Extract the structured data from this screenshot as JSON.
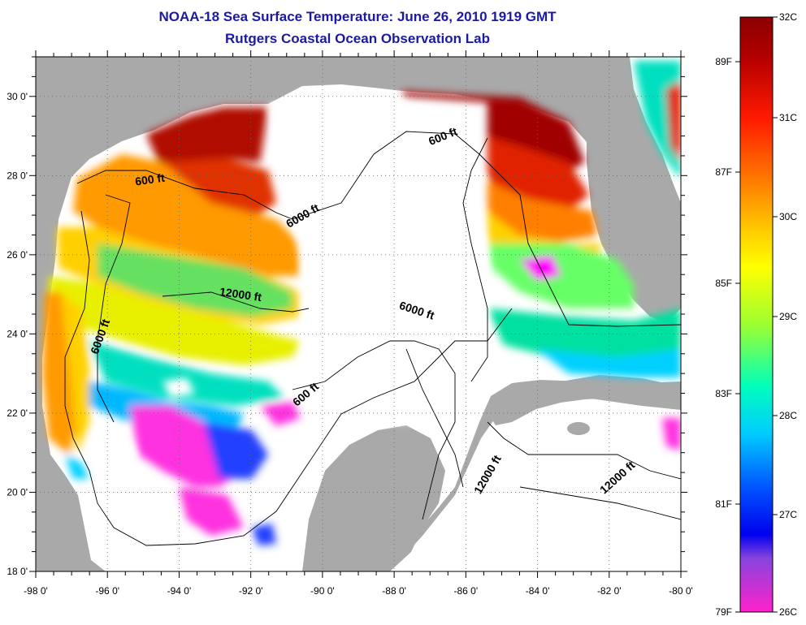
{
  "header": {
    "title": "NOAA-18 Sea Surface Temperature:  June 26, 2010 1919 GMT",
    "subtitle": "Rutgers Coastal Ocean Observation Lab"
  },
  "map": {
    "lon_range": [
      -98,
      -80
    ],
    "lat_range": [
      18,
      31
    ],
    "x_ticks": [
      "-98 0'",
      "-96 0'",
      "-94 0'",
      "-92 0'",
      "-90 0'",
      "-88 0'",
      "-86 0'",
      "-84 0'",
      "-82 0'",
      "-80 0'"
    ],
    "y_ticks": [
      "18 0'",
      "20 0'",
      "22 0'",
      "24 0'",
      "26 0'",
      "28 0'",
      "30 0'"
    ],
    "contour_labels": [
      {
        "id": "c600-north",
        "text": "600 ft",
        "lon": -86.6,
        "lat": 28.9
      },
      {
        "id": "c600-west",
        "text": "600 ft",
        "lon": -94.8,
        "lat": 27.8
      },
      {
        "id": "c6000-north",
        "text": "6000 ft",
        "lon": -90.5,
        "lat": 26.9
      },
      {
        "id": "c12000-west",
        "text": "12000 ft",
        "lon": -92.3,
        "lat": 24.9
      },
      {
        "id": "c6000-west",
        "text": "6000 ft",
        "lon": -96.1,
        "lat": 23.9
      },
      {
        "id": "c6000-central",
        "text": "6000 ft",
        "lon": -87.4,
        "lat": 24.5
      },
      {
        "id": "c600-south",
        "text": "600 ft",
        "lon": -90.4,
        "lat": 22.4
      },
      {
        "id": "c12000-east1",
        "text": "12000 ft",
        "lon": -85.3,
        "lat": 20.4
      },
      {
        "id": "c12000-east2",
        "text": "12000 ft",
        "lon": -81.7,
        "lat": 20.3
      }
    ]
  },
  "colorbar": {
    "celsius_labels": [
      "32C",
      "31C",
      "30C",
      "29C",
      "28C",
      "27C",
      "26C"
    ],
    "fahrenheit_labels": [
      "89F",
      "87F",
      "85F",
      "83F",
      "81F",
      "79F"
    ],
    "colors": {
      "land": "#a9a9a9",
      "no_data": "#ffffff",
      "hot": "#8b0000",
      "cold": "#ff00ff"
    }
  }
}
